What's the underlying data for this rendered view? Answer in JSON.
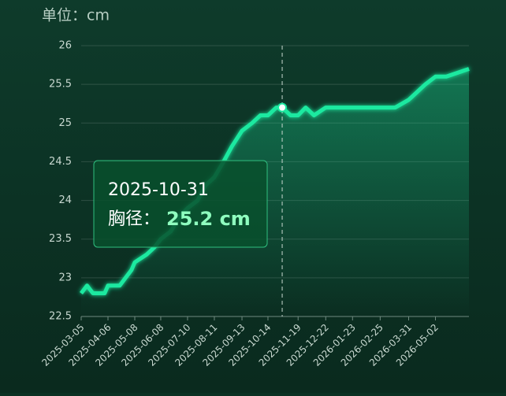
{
  "chart_data": {
    "type": "line",
    "y_axis_title": "单位：cm",
    "x": [
      "2025-03-05",
      "2025-03-12",
      "2025-03-19",
      "2025-04-02",
      "2025-04-06",
      "2025-04-20",
      "2025-04-27",
      "2025-05-04",
      "2025-05-08",
      "2025-05-22",
      "2025-06-01",
      "2025-06-08",
      "2025-06-20",
      "2025-07-01",
      "2025-07-10",
      "2025-07-22",
      "2025-08-01",
      "2025-08-11",
      "2025-08-22",
      "2025-09-01",
      "2025-09-13",
      "2025-09-25",
      "2025-10-05",
      "2025-10-14",
      "2025-10-24",
      "2025-10-31",
      "2025-11-10",
      "2025-11-19",
      "2025-11-28",
      "2025-12-08",
      "2025-12-22",
      "2026-01-05",
      "2026-01-23",
      "2026-02-10",
      "2026-02-25",
      "2026-03-15",
      "2026-03-31",
      "2026-04-10",
      "2026-04-20",
      "2026-05-02",
      "2026-05-15",
      "2026-06-11"
    ],
    "series": [
      {
        "name": "胸径",
        "color": "#1de9a0",
        "values": [
          22.8,
          22.9,
          22.8,
          22.8,
          22.9,
          22.9,
          23.0,
          23.1,
          23.2,
          23.3,
          23.4,
          23.5,
          23.6,
          23.8,
          23.9,
          24.0,
          24.2,
          24.3,
          24.5,
          24.7,
          24.9,
          25.0,
          25.1,
          25.1,
          25.2,
          25.2,
          25.1,
          25.1,
          25.2,
          25.1,
          25.2,
          25.2,
          25.2,
          25.2,
          25.2,
          25.2,
          25.3,
          25.4,
          25.5,
          25.6,
          25.6,
          25.7
        ]
      }
    ],
    "xlim": [
      "2025-03-05",
      "2026-06-11"
    ],
    "xticks": [
      "2025-03-05",
      "2025-04-06",
      "2025-05-08",
      "2025-06-08",
      "2025-07-10",
      "2025-08-11",
      "2025-09-13",
      "2025-10-14",
      "2025-11-19",
      "2025-12-22",
      "2026-01-23",
      "2026-02-25",
      "2026-03-31",
      "2026-05-02"
    ],
    "ylim": [
      22.5,
      26
    ],
    "yticks": [
      22.5,
      23,
      23.5,
      24,
      24.5,
      25,
      25.5,
      26
    ],
    "grid": true,
    "tooltip": {
      "x": "2025-10-31",
      "label": "胸径：",
      "value": 25.2,
      "value_label": "25.2 cm"
    }
  }
}
